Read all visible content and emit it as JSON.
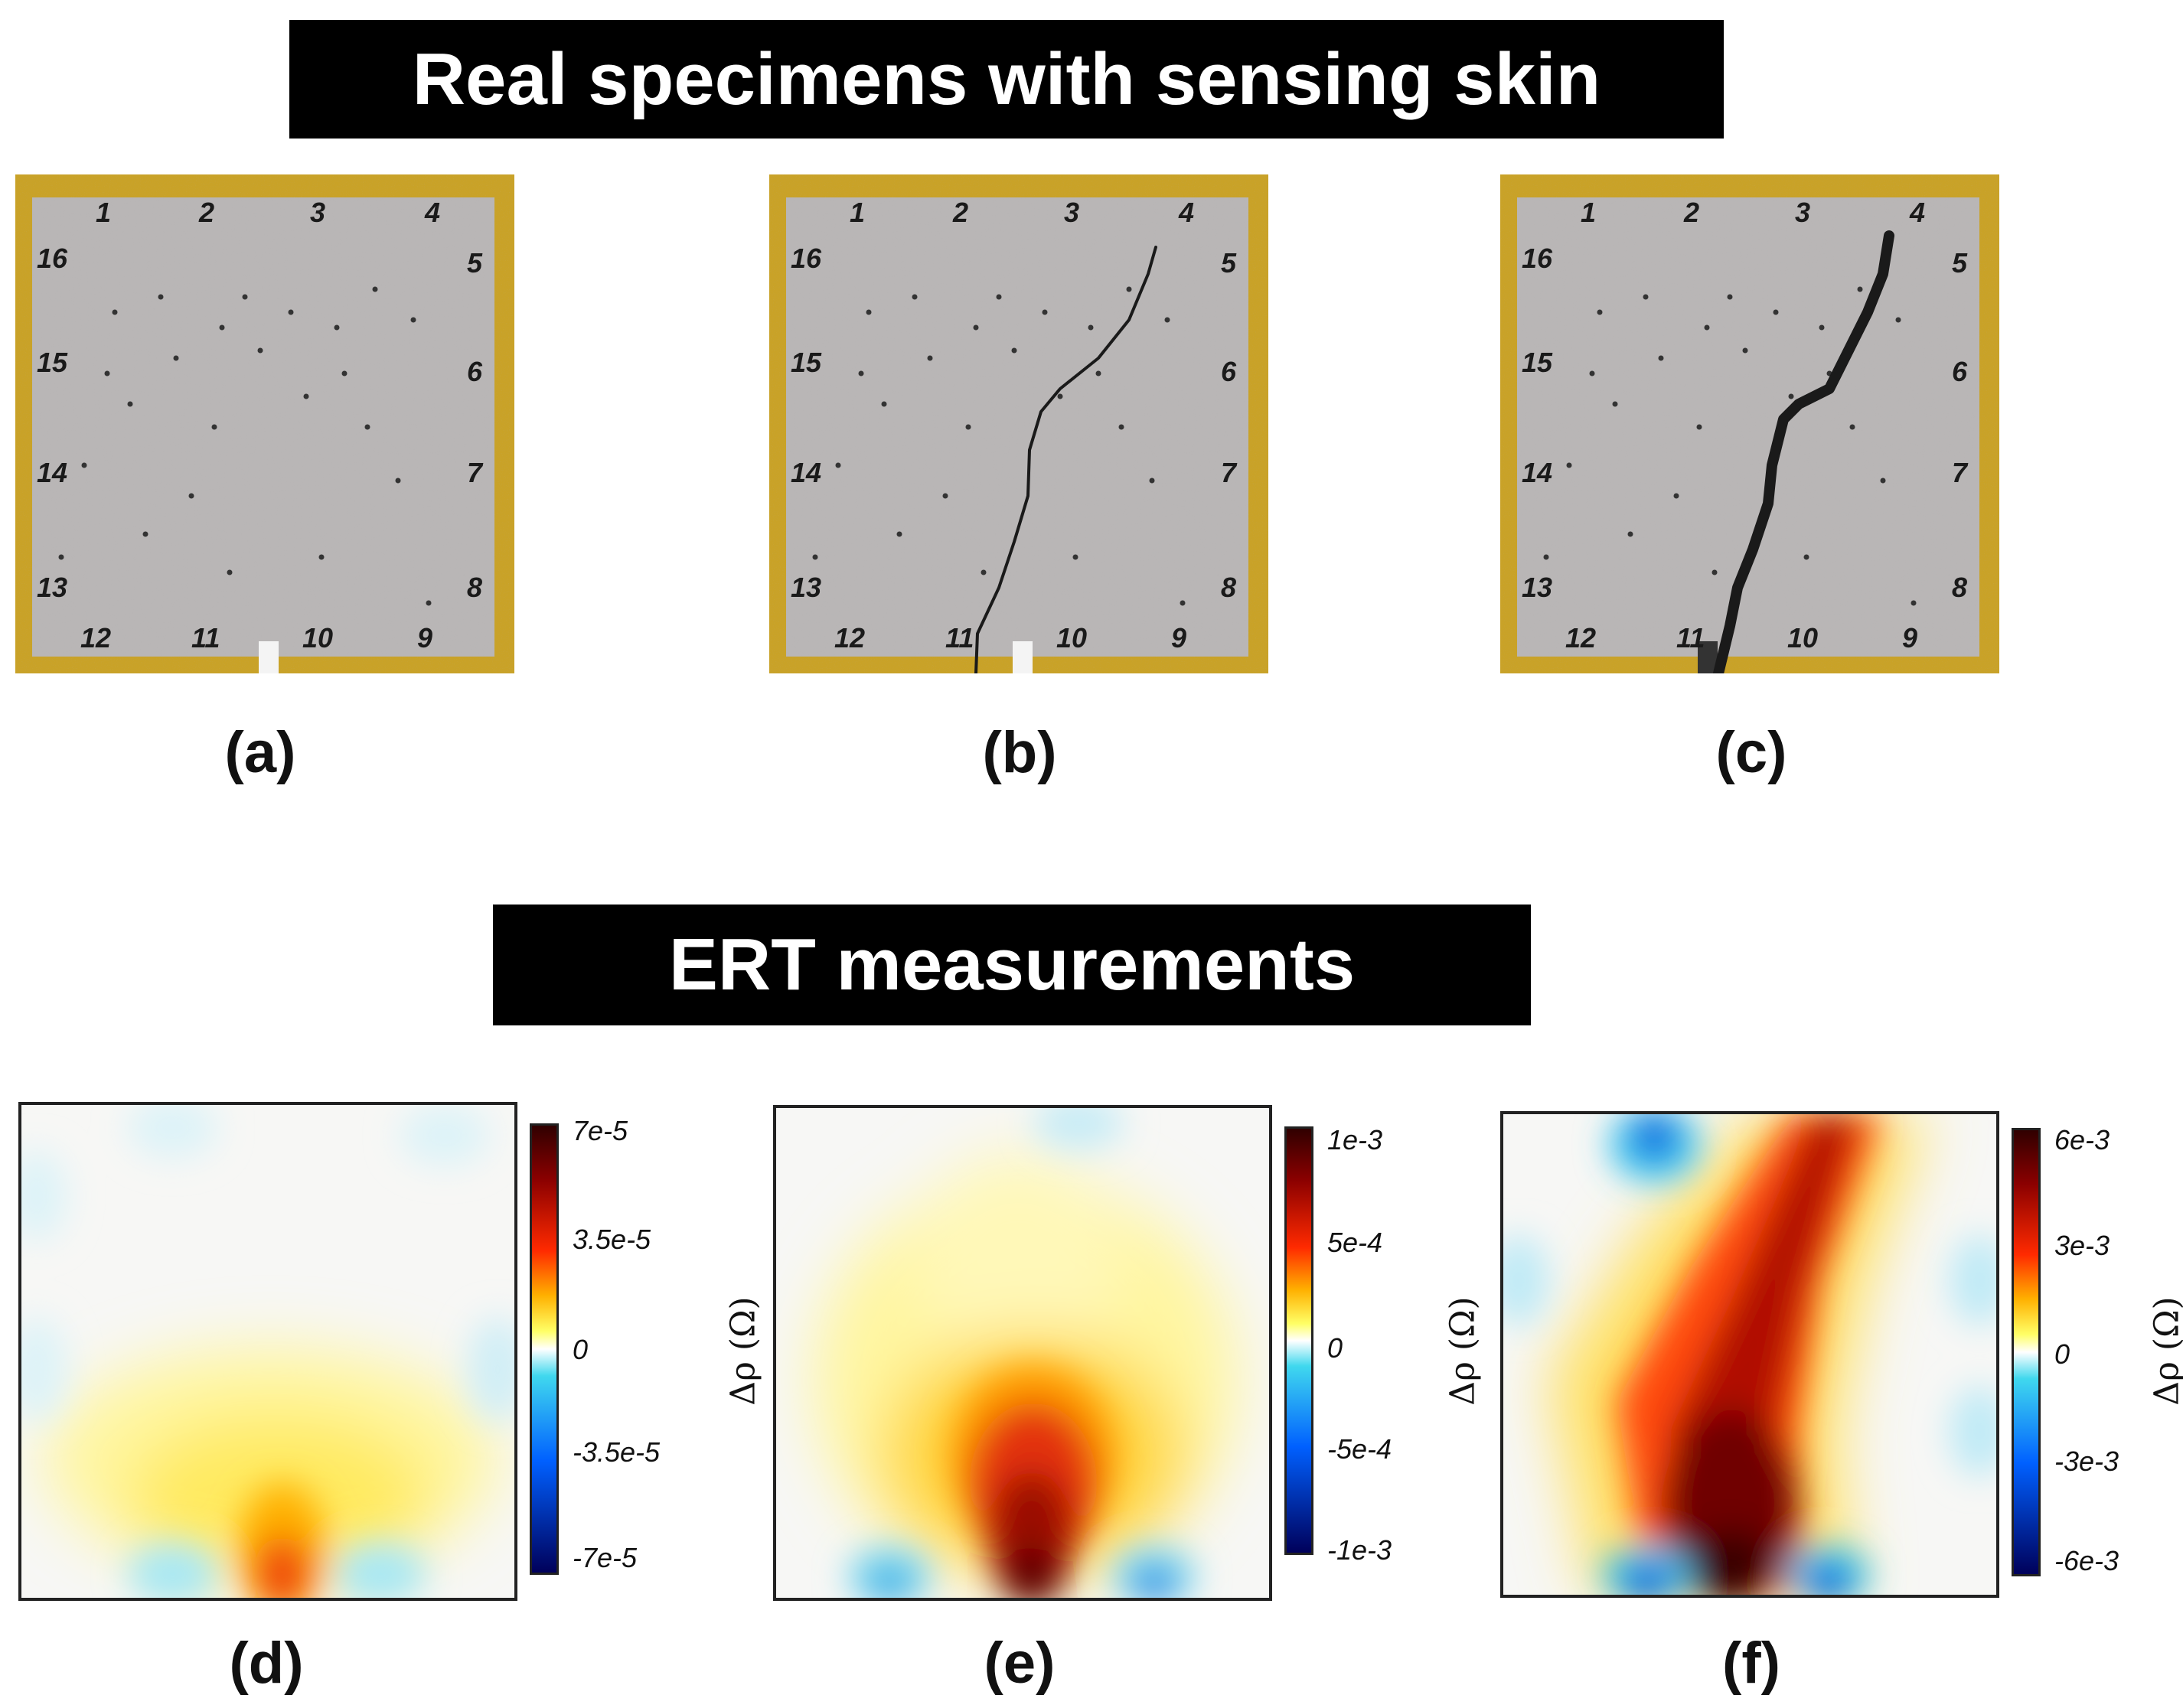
{
  "banners": {
    "top": "Real specimens with sensing skin",
    "bottom": "ERT measurements"
  },
  "captions": [
    "(a)",
    "(b)",
    "(c)",
    "(d)",
    "(e)",
    "(f)"
  ],
  "electrode_numbers": [
    "1",
    "2",
    "3",
    "4",
    "5",
    "6",
    "7",
    "8",
    "9",
    "10",
    "11",
    "12",
    "13",
    "14",
    "15",
    "16"
  ],
  "colors": {
    "frame_tape": "#c9a227",
    "specimen_surface": "#b9b6b6",
    "crack": "#1a1a1a",
    "colormap": [
      "#00005a",
      "#0060ff",
      "#40d8ee",
      "#ffffff",
      "#ffff66",
      "#ffb000",
      "#ff2a00",
      "#8a0000",
      "#300000"
    ]
  },
  "chart_data": [
    {
      "type": "heatmap",
      "panel": "(d)",
      "colorbar_ticks": [
        "7e-5",
        "3.5e-5",
        "0",
        "-3.5e-5",
        "-7e-5"
      ],
      "clim": [
        -7e-05,
        7e-05
      ],
      "colorbar_label": "Δρ (Ω)"
    },
    {
      "type": "heatmap",
      "panel": "(e)",
      "colorbar_ticks": [
        "1e-3",
        "5e-4",
        "0",
        "-5e-4",
        "-1e-3"
      ],
      "clim": [
        -0.001,
        0.001
      ],
      "colorbar_label": "Δρ (Ω)"
    },
    {
      "type": "heatmap",
      "panel": "(f)",
      "colorbar_ticks": [
        "6e-3",
        "3e-3",
        "0",
        "-3e-3",
        "-6e-3"
      ],
      "clim": [
        -0.006,
        0.006
      ],
      "colorbar_label": "Δρ (Ω)"
    }
  ]
}
